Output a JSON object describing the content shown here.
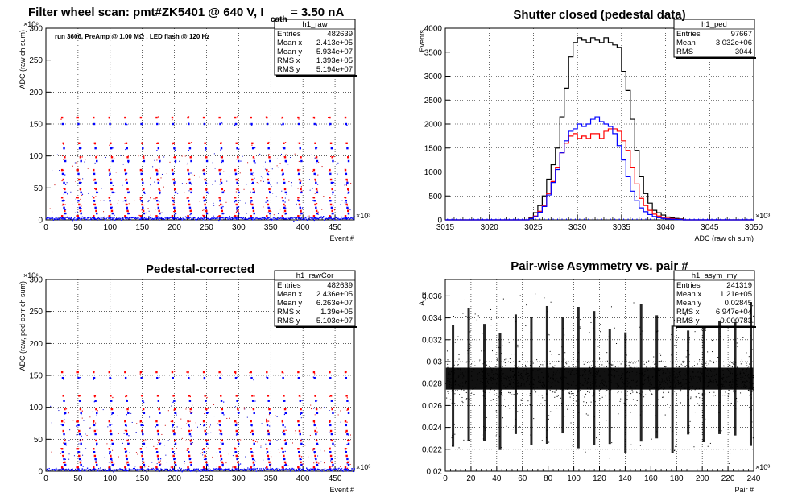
{
  "chart_data": [
    {
      "type": "scatter",
      "title": "Filter wheel scan: pmt#ZK5401 @   640 V, I",
      "title_sub": "cath",
      "title_tail": "= 3.50 nA",
      "xlabel": "Event #",
      "ylabel": "ADC (raw ch sum)",
      "x_exponent": "×10³",
      "y_exponent": "×10⁶",
      "xlim": [
        0,
        480
      ],
      "ylim": [
        0,
        300
      ],
      "x_ticks": [
        "0",
        "50",
        "100",
        "150",
        "200",
        "250",
        "300",
        "350",
        "400",
        "450"
      ],
      "y_ticks": [
        "0",
        "50",
        "100",
        "150",
        "200",
        "250",
        "300"
      ],
      "grid": true,
      "annotation": "run 3606, PreAmp @ 1.00 MΩ , LED flash @  120 Hz",
      "stats": {
        "name": "h1_raw",
        "rows": [
          [
            "Entries",
            "482639"
          ],
          [
            "Mean x",
            "2.413e+05"
          ],
          [
            "Mean y",
            "5.934e+07"
          ],
          [
            "RMS x",
            "1.393e+05"
          ],
          [
            "RMS y",
            "5.194e+07"
          ]
        ]
      },
      "series": [
        {
          "color": "#ff0000",
          "x_start": 27,
          "x_step": 24.5,
          "levels": [
            160,
            120,
            98,
            78,
            63,
            48,
            35,
            24,
            14,
            6
          ]
        },
        {
          "color": "#0000ff",
          "x_start": 27,
          "x_step": 24.5,
          "levels": [
            150,
            112,
            92,
            72,
            58,
            43,
            30,
            19,
            10,
            3
          ]
        }
      ]
    },
    {
      "type": "step",
      "title": "Shutter closed (pedestal data)",
      "xlabel": "ADC (raw ch sum)",
      "ylabel": "Events",
      "x_exponent": "×10³",
      "xlim": [
        3015,
        3050
      ],
      "ylim": [
        0,
        4000
      ],
      "x_ticks": [
        "3015",
        "3020",
        "3025",
        "3030",
        "3035",
        "3040",
        "3045",
        "3050"
      ],
      "y_ticks": [
        "0",
        "500",
        "1000",
        "1500",
        "2000",
        "2500",
        "3000",
        "3500",
        "4000"
      ],
      "grid": true,
      "stats": {
        "name": "h1_ped",
        "rows": [
          [
            "Entries",
            "97667"
          ],
          [
            "Mean",
            "3.032e+06"
          ],
          [
            "RMS",
            "3044"
          ]
        ]
      },
      "bins": [
        3024.5,
        3025,
        3025.5,
        3026,
        3026.5,
        3027,
        3027.5,
        3028,
        3028.5,
        3029,
        3029.5,
        3030,
        3030.5,
        3031,
        3031.5,
        3032,
        3032.5,
        3033,
        3033.5,
        3034,
        3034.5,
        3035,
        3035.5,
        3036,
        3036.5,
        3037,
        3037.5,
        3038,
        3038.5,
        3039,
        3039.5,
        3040,
        3040.5,
        3041,
        3041.5
      ],
      "series": [
        {
          "color": "#000000",
          "values": [
            50,
            150,
            300,
            500,
            850,
            1150,
            1500,
            2150,
            2750,
            3400,
            3700,
            3800,
            3750,
            3700,
            3800,
            3750,
            3700,
            3800,
            3700,
            3650,
            3600,
            3100,
            2700,
            2100,
            1450,
            900,
            550,
            350,
            200,
            150,
            100,
            60,
            40,
            30,
            20
          ]
        },
        {
          "color": "#ff0000",
          "values": [
            30,
            80,
            180,
            300,
            550,
            800,
            1100,
            1400,
            1600,
            1750,
            1800,
            1700,
            1750,
            1700,
            1800,
            1800,
            1700,
            1850,
            1900,
            1900,
            1850,
            1650,
            1450,
            1100,
            750,
            450,
            300,
            200,
            120,
            80,
            50,
            35,
            25,
            15,
            10
          ]
        },
        {
          "color": "#0000ff",
          "values": [
            25,
            70,
            160,
            280,
            520,
            780,
            1050,
            1400,
            1650,
            1850,
            1900,
            2000,
            1950,
            2000,
            2100,
            2150,
            2050,
            2000,
            1950,
            1800,
            1550,
            1250,
            900,
            600,
            400,
            250,
            170,
            110,
            70,
            45,
            30,
            20,
            12,
            8,
            5
          ]
        }
      ]
    },
    {
      "type": "scatter",
      "title": "Pedestal-corrected",
      "xlabel": "Event #",
      "ylabel": "ADC (raw, ped-corr ch sum)",
      "x_exponent": "×10³",
      "y_exponent": "×10⁶",
      "xlim": [
        0,
        480
      ],
      "ylim": [
        0,
        300
      ],
      "x_ticks": [
        "0",
        "50",
        "100",
        "150",
        "200",
        "250",
        "300",
        "350",
        "400",
        "450"
      ],
      "y_ticks": [
        "0",
        "50",
        "100",
        "150",
        "200",
        "250",
        "300"
      ],
      "grid": true,
      "stats": {
        "name": "h1_rawCor",
        "rows": [
          [
            "Entries",
            "482639"
          ],
          [
            "Mean x",
            "2.436e+05"
          ],
          [
            "Mean y",
            "6.263e+07"
          ],
          [
            "RMS x",
            "1.39e+05"
          ],
          [
            "RMS y",
            "5.103e+07"
          ]
        ]
      },
      "series": [
        {
          "color": "#ff0000",
          "x_start": 27,
          "x_step": 24.5,
          "levels": [
            155,
            118,
            97,
            78,
            63,
            48,
            35,
            24,
            14,
            6
          ]
        },
        {
          "color": "#0000ff",
          "x_start": 27,
          "x_step": 24.5,
          "levels": [
            146,
            110,
            91,
            72,
            58,
            43,
            30,
            19,
            10,
            3
          ]
        }
      ]
    },
    {
      "type": "scatter",
      "title": "Pair-wise Asymmetry vs. pair #",
      "xlabel": "Pair #",
      "ylabel": "A_LED",
      "x_exponent": "×10³",
      "xlim": [
        0,
        240
      ],
      "ylim": [
        0.02,
        0.0375
      ],
      "x_ticks": [
        "0",
        "20",
        "40",
        "60",
        "80",
        "100",
        "120",
        "140",
        "160",
        "180",
        "200",
        "220",
        "240"
      ],
      "y_ticks": [
        "0.02",
        "0.022",
        "0.024",
        "0.026",
        "0.028",
        "0.03",
        "0.032",
        "0.034",
        "0.036"
      ],
      "grid": true,
      "stats": {
        "name": "h1_asym_my",
        "rows": [
          [
            "Entries",
            "241319"
          ],
          [
            "Mean x",
            "1.21e+05"
          ],
          [
            "Mean y",
            "0.02845"
          ],
          [
            "RMS x",
            "6.947e+04"
          ],
          [
            "RMS y",
            "0.000783"
          ]
        ]
      },
      "band": {
        "center": 0.02845,
        "half_width": 0.0008
      },
      "spike_x_start": 6,
      "spike_x_step": 12.2,
      "series": [
        {
          "color": "#000000"
        }
      ]
    }
  ]
}
